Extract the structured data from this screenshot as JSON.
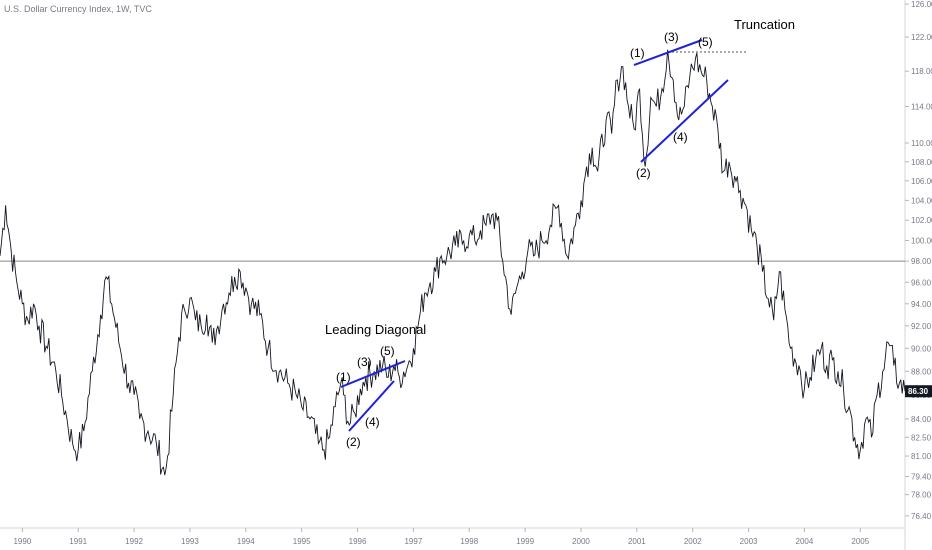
{
  "chart_data": {
    "type": "line",
    "title": "U.S. Dollar Currency Index, 1W, TVC",
    "xlabel": "",
    "ylabel": "",
    "x_tick_labels": [
      "1990",
      "1991",
      "1992",
      "1993",
      "1994",
      "1995",
      "1996",
      "1997",
      "1998",
      "1999",
      "2000",
      "2001",
      "2002",
      "2003",
      "2004",
      "2005"
    ],
    "y_tick_labels": [
      "126.00",
      "122.00",
      "118.00",
      "114.00",
      "110.00",
      "108.00",
      "106.00",
      "104.00",
      "102.00",
      "100.00",
      "98.00",
      "96.00",
      "94.00",
      "92.00",
      "90.00",
      "88.00",
      "86.00",
      "84.00",
      "82.50",
      "81.00",
      "79.40",
      "78.00",
      "76.40"
    ],
    "xlim": [
      1989.6,
      2005.8
    ],
    "ylim": [
      75.5,
      126.5
    ],
    "y_scale": "log",
    "last_price": "86.30",
    "horizontal_line": 98.0,
    "series": [
      {
        "x": [
          1989.6,
          1989.7,
          1989.8,
          1989.9,
          1990.0,
          1990.1,
          1990.2,
          1990.3,
          1990.45,
          1990.6,
          1990.7,
          1990.8,
          1990.9,
          1991.0,
          1991.1,
          1991.25,
          1991.4,
          1991.5,
          1991.6,
          1991.75,
          1991.9,
          1992.0,
          1992.1,
          1992.25,
          1992.4,
          1992.55,
          1992.6,
          1992.7,
          1992.8,
          1992.9,
          1993.0,
          1993.1,
          1993.2,
          1993.3,
          1993.4,
          1993.5,
          1993.6,
          1993.7,
          1993.8,
          1993.9,
          1994.0,
          1994.1,
          1994.25,
          1994.4,
          1994.6,
          1994.75,
          1994.9,
          1995.0,
          1995.15,
          1995.3,
          1995.4,
          1995.5,
          1995.6,
          1995.7,
          1995.75,
          1995.85,
          1995.95,
          1996.05,
          1996.15,
          1996.3,
          1996.45,
          1996.55,
          1996.65,
          1996.75,
          1996.9,
          1997.0,
          1997.1,
          1997.2,
          1997.3,
          1997.4,
          1997.5,
          1997.6,
          1997.75,
          1997.9,
          1998.0,
          1998.1,
          1998.2,
          1998.3,
          1998.4,
          1998.5,
          1998.6,
          1998.75,
          1998.85,
          1998.95,
          1999.05,
          1999.15,
          1999.3,
          1999.45,
          1999.6,
          1999.75,
          1999.9,
          2000.0,
          2000.1,
          2000.2,
          2000.3,
          2000.45,
          2000.55,
          2000.65,
          2000.75,
          2000.85,
          2000.95,
          2001.05,
          2001.15,
          2001.25,
          2001.35,
          2001.45,
          2001.55,
          2001.65,
          2001.75,
          2001.85,
          2001.95,
          2002.05,
          2002.15,
          2002.25,
          2002.35,
          2002.45,
          2002.55,
          2002.65,
          2002.75,
          2002.85,
          2002.95,
          2003.05,
          2003.15,
          2003.25,
          2003.35,
          2003.45,
          2003.55,
          2003.65,
          2003.75,
          2003.9,
          2004.0,
          2004.1,
          2004.2,
          2004.3,
          2004.4,
          2004.5,
          2004.6,
          2004.7,
          2004.8,
          2004.9,
          2005.0,
          2005.1,
          2005.2,
          2005.3,
          2005.4,
          2005.5,
          2005.6,
          2005.7,
          2005.8
        ],
        "y": [
          98.5,
          103.5,
          99.0,
          96.0,
          94.0,
          92.5,
          94.0,
          92.0,
          90.0,
          88.0,
          86.0,
          84.0,
          82.0,
          81.5,
          83.0,
          88.0,
          93.0,
          96.5,
          94.0,
          90.0,
          87.0,
          86.0,
          84.0,
          83.0,
          82.0,
          79.5,
          81.0,
          86.0,
          91.0,
          93.5,
          94.5,
          92.5,
          92.0,
          93.0,
          90.5,
          92.0,
          94.0,
          95.0,
          96.5,
          97.0,
          95.5,
          94.0,
          93.0,
          90.0,
          88.0,
          87.0,
          86.0,
          85.0,
          84.0,
          82.0,
          81.5,
          82.5,
          85.0,
          87.0,
          86.0,
          83.5,
          84.5,
          86.5,
          87.5,
          88.0,
          88.5,
          87.5,
          88.5,
          87.5,
          88.5,
          90.0,
          92.5,
          95.0,
          96.0,
          97.0,
          98.5,
          98.5,
          99.5,
          100.0,
          100.5,
          100.0,
          101.0,
          101.5,
          102.5,
          102.0,
          98.0,
          93.0,
          95.5,
          97.0,
          99.0,
          98.5,
          100.0,
          101.5,
          103.5,
          98.5,
          101.5,
          104.0,
          107.5,
          109.5,
          107.0,
          112.5,
          111.0,
          117.0,
          118.5,
          114.0,
          111.5,
          116.0,
          107.5,
          115.0,
          114.0,
          116.0,
          120.5,
          117.0,
          112.5,
          114.0,
          117.5,
          119.5,
          118.0,
          117.0,
          114.0,
          111.5,
          107.0,
          108.0,
          106.5,
          105.0,
          103.5,
          101.0,
          99.5,
          97.0,
          94.5,
          92.5,
          97.0,
          93.5,
          90.0,
          88.5,
          86.5,
          87.5,
          89.0,
          90.0,
          88.5,
          89.0,
          88.0,
          86.5,
          85.0,
          82.5,
          81.5,
          84.0,
          82.5,
          86.0,
          88.0,
          90.5,
          88.5,
          87.0,
          86.3
        ]
      }
    ],
    "annotations": {
      "leading_diagonal": "Leading Diagonal",
      "truncation": "Truncation",
      "wave_labels_1996": [
        "(1)",
        "(2)",
        "(3)",
        "(4)",
        "(5)"
      ],
      "wave_labels_2001": [
        "(1)",
        "(2)",
        "(3)",
        "(4)",
        "(5)"
      ]
    }
  },
  "colors": {
    "price_line": "#131722",
    "trendlines": "#1e22d8",
    "horizontal_line": "#888888",
    "axis_text": "#787b86",
    "last_price_bg": "#131722"
  }
}
